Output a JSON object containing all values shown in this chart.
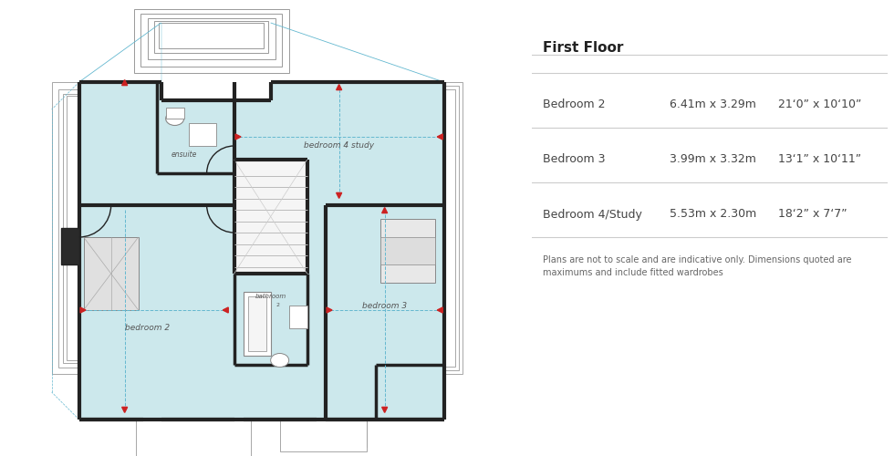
{
  "title": "First Floor",
  "rooms": [
    {
      "name": "Bedroom 2",
      "metric": "6.41m x 3.29m",
      "imperial": "21‘0” x 10‘10”"
    },
    {
      "name": "Bedroom 3",
      "metric": "3.99m x 3.32m",
      "imperial": "13‘1” x 10‘11”"
    },
    {
      "name": "Bedroom 4/Study",
      "metric": "5.53m x 2.30m",
      "imperial": "18‘2” x 7‘7”"
    }
  ],
  "disclaimer": "Plans are not to scale and are indicative only. Dimensions quoted are\nmaximums and include fitted wardrobes",
  "bg_color": "#ffffff",
  "floor_bg": "#cce8ec",
  "wall_color": "#222222",
  "dashed_color": "#64b8d0",
  "arrow_color": "#cc2222",
  "label_color": "#555555",
  "title_color": "#222222",
  "text_color": "#444444",
  "line_color": "#cccccc",
  "step_color": "#999999",
  "step_bg": "#f0f0f0"
}
